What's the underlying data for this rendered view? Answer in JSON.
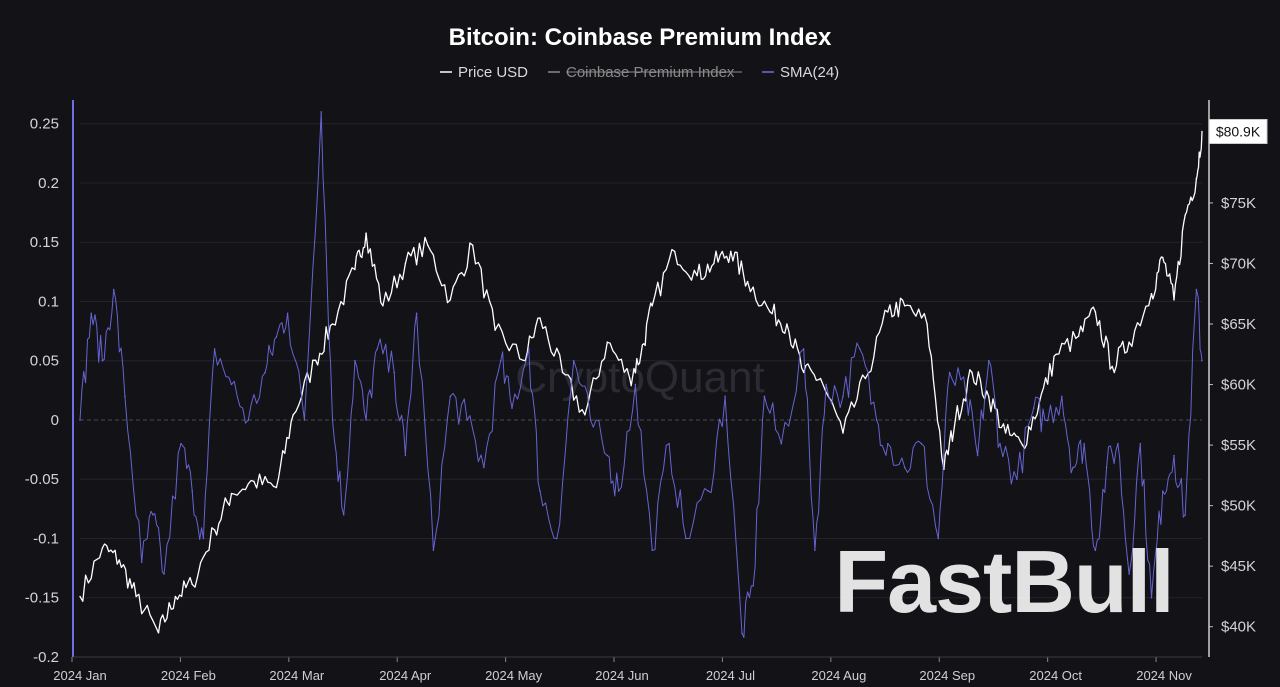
{
  "chart_data": {
    "type": "line",
    "title": "Bitcoin: Coinbase Premium Index",
    "legend": [
      {
        "label": "Price USD",
        "color": "#ffffff",
        "strikethrough": false
      },
      {
        "label": "Coinbase Premium Index",
        "color": "#8a8a8a",
        "strikethrough": true
      },
      {
        "label": "SMA(24)",
        "color": "#6e6ee6",
        "strikethrough": false
      }
    ],
    "legend_position": "top-center",
    "x_ticks": [
      "2024 Jan",
      "2024 Feb",
      "2024 Mar",
      "2024 Apr",
      "2024 May",
      "2024 Jun",
      "2024 Jul",
      "2024 Aug",
      "2024 Sep",
      "2024 Oct",
      "2024 Nov"
    ],
    "y_left": {
      "ylim": [
        -0.2,
        0.27
      ],
      "ticks": [
        -0.2,
        -0.15,
        -0.1,
        -0.05,
        0,
        0.05,
        0.1,
        0.15,
        0.2,
        0.25
      ],
      "tick_labels": [
        "-0.2",
        "-0.15",
        "-0.1",
        "-0.05",
        "0",
        "0.05",
        "0.1",
        "0.15",
        "0.2",
        "0.25"
      ]
    },
    "y_right": {
      "ylim": [
        37500,
        83500
      ],
      "ticks": [
        40000,
        45000,
        50000,
        55000,
        60000,
        65000,
        70000,
        75000
      ],
      "tick_labels": [
        "$40K",
        "$45K",
        "$50K",
        "$55K",
        "$60K",
        "$65K",
        "$70K",
        "$75K"
      ]
    },
    "last_price_label": "$80.9K",
    "last_price_value": 80900,
    "series": [
      {
        "name": "Price USD",
        "axis": "right",
        "color": "#ffffff",
        "t": [
          0,
          0.02,
          0.035,
          0.05,
          0.07,
          0.085,
          0.1,
          0.12,
          0.135,
          0.155,
          0.175,
          0.19,
          0.21,
          0.225,
          0.245,
          0.255,
          0.27,
          0.29,
          0.31,
          0.33,
          0.35,
          0.37,
          0.395,
          0.41,
          0.43,
          0.45,
          0.47,
          0.49,
          0.5,
          0.51,
          0.53,
          0.55,
          0.565,
          0.58,
          0.595,
          0.615,
          0.63,
          0.645,
          0.66,
          0.68,
          0.7,
          0.72,
          0.735,
          0.755,
          0.77,
          0.78,
          0.795,
          0.81,
          0.825,
          0.84,
          0.855,
          0.87,
          0.89,
          0.905,
          0.92,
          0.935,
          0.955,
          0.965,
          0.975,
          0.985,
          0.995,
          1.0
        ],
        "values": [
          42500,
          46500,
          45500,
          42500,
          39500,
          42500,
          43500,
          48000,
          51000,
          52000,
          51500,
          57500,
          62000,
          65000,
          69500,
          72500,
          66500,
          70000,
          71500,
          67000,
          71500,
          64500,
          62000,
          65500,
          61000,
          57500,
          63500,
          60500,
          62500,
          66500,
          71000,
          69000,
          70000,
          71000,
          68500,
          66000,
          65000,
          61000,
          60500,
          56000,
          60500,
          66000,
          66500,
          65000,
          53000,
          57000,
          61000,
          59000,
          56000,
          55000,
          58500,
          62500,
          64000,
          66000,
          61500,
          63500,
          67500,
          70500,
          67000,
          74000,
          77000,
          80900
        ]
      },
      {
        "name": "SMA(24)",
        "axis": "left",
        "color": "#6e6ee6",
        "t": [
          0,
          0.01,
          0.02,
          0.03,
          0.04,
          0.055,
          0.065,
          0.075,
          0.09,
          0.1,
          0.11,
          0.12,
          0.135,
          0.15,
          0.165,
          0.175,
          0.185,
          0.2,
          0.215,
          0.225,
          0.235,
          0.245,
          0.255,
          0.265,
          0.28,
          0.29,
          0.3,
          0.315,
          0.33,
          0.345,
          0.36,
          0.375,
          0.385,
          0.4,
          0.41,
          0.425,
          0.44,
          0.455,
          0.47,
          0.48,
          0.495,
          0.51,
          0.525,
          0.54,
          0.56,
          0.575,
          0.59,
          0.6,
          0.61,
          0.625,
          0.645,
          0.655,
          0.665,
          0.68,
          0.695,
          0.71,
          0.72,
          0.735,
          0.75,
          0.765,
          0.775,
          0.79,
          0.8,
          0.81,
          0.82,
          0.835,
          0.85,
          0.86,
          0.875,
          0.885,
          0.895,
          0.905,
          0.915,
          0.925,
          0.935,
          0.945,
          0.955,
          0.965,
          0.975,
          0.985,
          0.995,
          1.0
        ],
        "values": [
          0.0,
          0.09,
          0.05,
          0.11,
          0.02,
          -0.12,
          -0.08,
          -0.13,
          -0.02,
          -0.06,
          -0.1,
          0.06,
          0.03,
          0.0,
          0.04,
          0.07,
          0.09,
          0.0,
          0.26,
          0.0,
          -0.08,
          0.05,
          0.0,
          0.06,
          0.04,
          -0.03,
          0.09,
          -0.11,
          0.02,
          0.0,
          -0.04,
          0.05,
          0.01,
          0.06,
          -0.06,
          -0.1,
          0.05,
          0.0,
          -0.03,
          -0.06,
          0.03,
          -0.11,
          -0.02,
          -0.1,
          -0.06,
          0.02,
          -0.18,
          -0.14,
          0.02,
          -0.02,
          0.06,
          -0.11,
          0.03,
          0.02,
          0.06,
          0.0,
          -0.02,
          -0.04,
          -0.02,
          -0.1,
          0.04,
          0.02,
          -0.03,
          0.05,
          -0.02,
          -0.05,
          0.01,
          0.0,
          0.02,
          -0.04,
          -0.02,
          -0.11,
          -0.04,
          -0.02,
          -0.13,
          -0.02,
          -0.15,
          -0.06,
          -0.03,
          -0.08,
          0.11,
          0.05
        ]
      }
    ]
  },
  "watermarks": {
    "cryptoquant": "CryptoQuant",
    "fastbull": "FastBull"
  }
}
